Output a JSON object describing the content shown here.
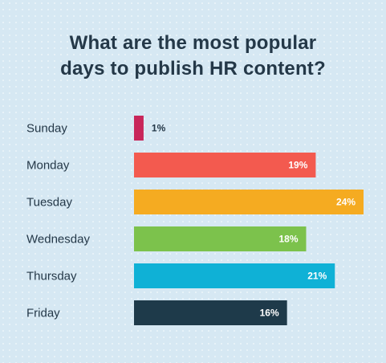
{
  "title_lines": [
    "What are the most popular",
    "days to publish HR content?"
  ],
  "chart_data": {
    "type": "bar",
    "orientation": "horizontal",
    "categories": [
      "Sunday",
      "Monday",
      "Tuesday",
      "Wednesday",
      "Thursday",
      "Friday"
    ],
    "values": [
      1,
      19,
      24,
      18,
      21,
      16
    ],
    "value_labels": [
      "1%",
      "19%",
      "24%",
      "18%",
      "21%",
      "16%"
    ],
    "colors": [
      "#c8265a",
      "#f35a4f",
      "#f5ab21",
      "#7cc24c",
      "#0fb1d6",
      "#1e3a4a"
    ],
    "label_colors": [
      "#243848",
      "#ffffff",
      "#ffffff",
      "#ffffff",
      "#ffffff",
      "#ffffff"
    ],
    "title": "What are the most popular days to publish HR content?",
    "xlim": [
      0,
      24
    ],
    "grid": false,
    "legend": "none"
  }
}
